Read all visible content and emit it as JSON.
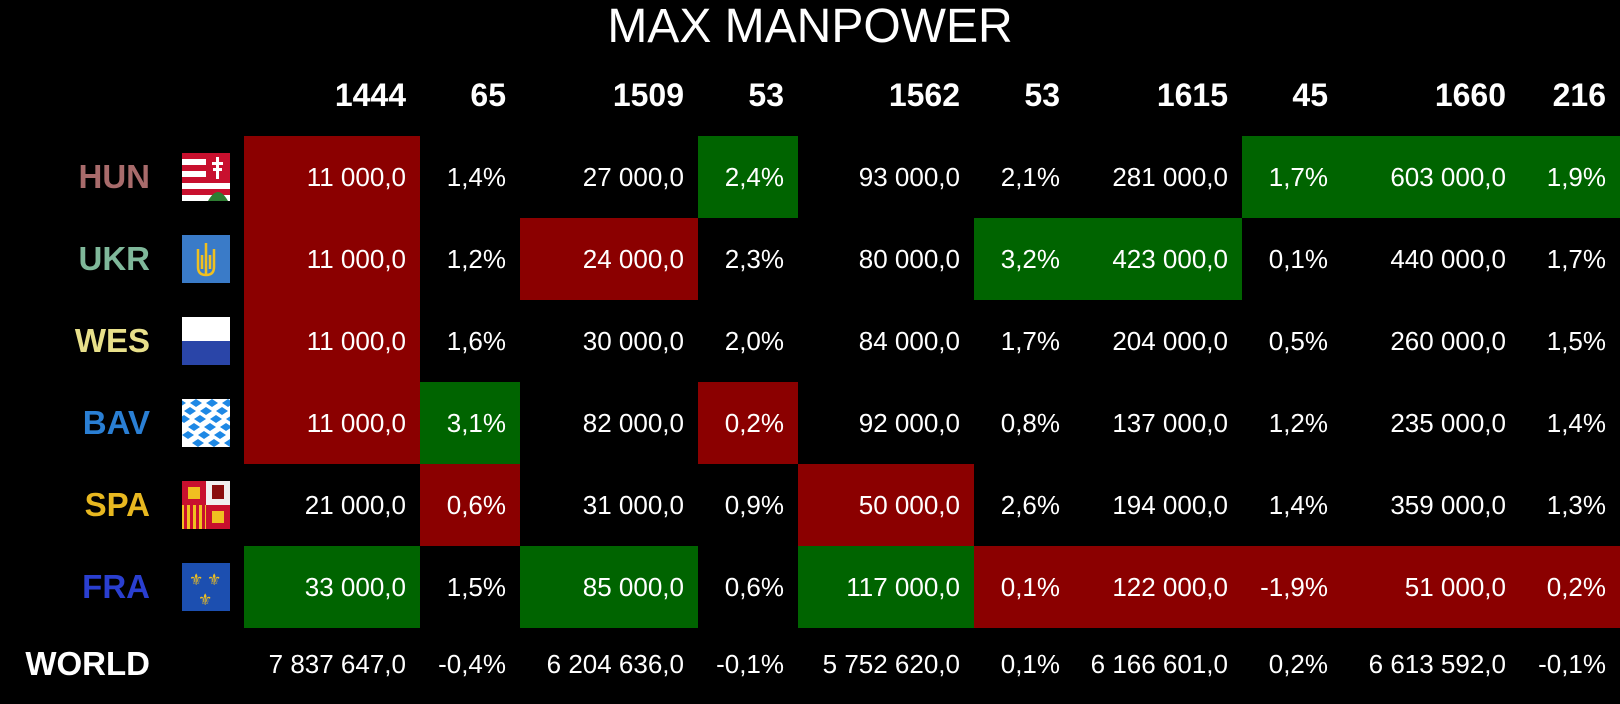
{
  "title": "MAX MANPOWER",
  "headers": [
    "1444",
    "65",
    "1509",
    "53",
    "1562",
    "53",
    "1615",
    "45",
    "1660",
    "216"
  ],
  "rows": [
    {
      "code": "HUN",
      "color": "#a86b6b",
      "flag": "hungary-flag-icon",
      "cells": [
        "11 000,0",
        "1,4%",
        "27 000,0",
        "2,4%",
        "93 000,0",
        "2,1%",
        "281 000,0",
        "1,7%",
        "603 000,0",
        "1,9%"
      ],
      "bg": [
        "red",
        "",
        "",
        "green",
        "",
        "",
        "",
        "green",
        "green",
        "green"
      ]
    },
    {
      "code": "UKR",
      "color": "#7fb89a",
      "flag": "ukraine-flag-icon",
      "cells": [
        "11 000,0",
        "1,2%",
        "24 000,0",
        "2,3%",
        "80 000,0",
        "3,2%",
        "423 000,0",
        "0,1%",
        "440 000,0",
        "1,7%"
      ],
      "bg": [
        "red",
        "",
        "red",
        "",
        "",
        "green",
        "green",
        "",
        "",
        ""
      ]
    },
    {
      "code": "WES",
      "color": "#e8e08a",
      "flag": "westphalia-flag-icon",
      "cells": [
        "11 000,0",
        "1,6%",
        "30 000,0",
        "2,0%",
        "84 000,0",
        "1,7%",
        "204 000,0",
        "0,5%",
        "260 000,0",
        "1,5%"
      ],
      "bg": [
        "red",
        "",
        "",
        "",
        "",
        "",
        "",
        "",
        "",
        ""
      ]
    },
    {
      "code": "BAV",
      "color": "#2a7fd4",
      "flag": "bavaria-flag-icon",
      "cells": [
        "11 000,0",
        "3,1%",
        "82 000,0",
        "0,2%",
        "92 000,0",
        "0,8%",
        "137 000,0",
        "1,2%",
        "235 000,0",
        "1,4%"
      ],
      "bg": [
        "red",
        "green",
        "",
        "red",
        "",
        "",
        "",
        "",
        "",
        ""
      ]
    },
    {
      "code": "SPA",
      "color": "#e8b820",
      "flag": "spain-flag-icon",
      "cells": [
        "21 000,0",
        "0,6%",
        "31 000,0",
        "0,9%",
        "50 000,0",
        "2,6%",
        "194 000,0",
        "1,4%",
        "359 000,0",
        "1,3%"
      ],
      "bg": [
        "",
        "red",
        "",
        "",
        "red",
        "",
        "",
        "",
        "",
        ""
      ]
    },
    {
      "code": "FRA",
      "color": "#2a3fd0",
      "flag": "france-flag-icon",
      "cells": [
        "33 000,0",
        "1,5%",
        "85 000,0",
        "0,6%",
        "117 000,0",
        "0,1%",
        "122 000,0",
        "-1,9%",
        "51 000,0",
        "0,2%"
      ],
      "bg": [
        "green",
        "",
        "green",
        "",
        "green",
        "red",
        "red",
        "red",
        "red",
        "red"
      ]
    }
  ],
  "world": {
    "label": "WORLD",
    "cells": [
      "7 837 647,0",
      "-0,4%",
      "6 204 636,0",
      "-0,1%",
      "5 752 620,0",
      "0,1%",
      "6 166 601,0",
      "0,2%",
      "6 613 592,0",
      "-0,1%"
    ]
  }
}
